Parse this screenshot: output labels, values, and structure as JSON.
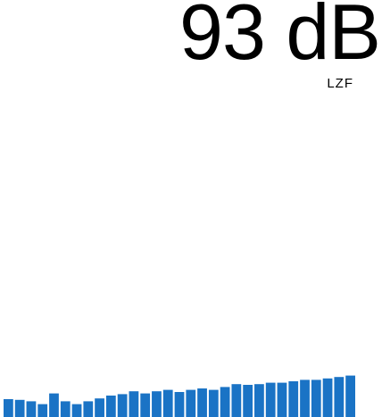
{
  "meter": {
    "level_text": "93 dB",
    "weighting": "LZF"
  },
  "colors": {
    "bar": "#1a73c5",
    "background": "#ffffff",
    "text": "#000000"
  },
  "chart_data": {
    "type": "bar",
    "values": [
      25,
      24,
      22,
      18,
      33,
      22,
      18,
      22,
      26,
      30,
      32,
      36,
      33,
      36,
      38,
      35,
      38,
      40,
      38,
      42,
      46,
      45,
      46,
      48,
      48,
      50,
      52,
      52,
      54,
      56,
      58
    ],
    "ylim": [
      0,
      100
    ]
  }
}
